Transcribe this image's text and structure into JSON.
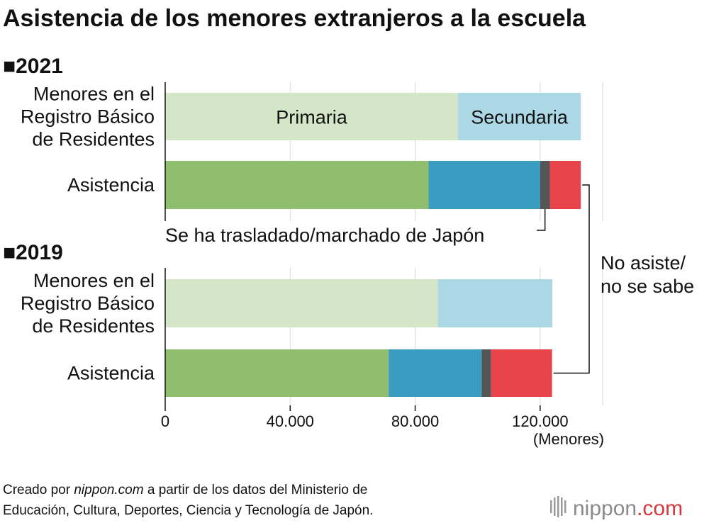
{
  "title": "Asistencia de los menores extranjeros a la escuela",
  "chart_data": {
    "type": "bar",
    "orientation": "horizontal",
    "stacked": true,
    "unit": "(Menores)",
    "xlim": [
      0,
      140000
    ],
    "ticks": [
      0,
      40000,
      80000,
      120000
    ],
    "tick_labels": [
      "0",
      "40.000",
      "80.000",
      "120.000"
    ],
    "panels": [
      {
        "year_label": "■2021",
        "bars": [
          {
            "category": [
              "Menores en el",
              "Registro Básico",
              "de Residentes"
            ],
            "segments": [
              {
                "name": "Primaria",
                "value": 93700,
                "color": "#d3e6c8",
                "label": "Primaria"
              },
              {
                "name": "Secundaria",
                "value": 39300,
                "color": "#acd8e6",
                "label": "Secundaria"
              }
            ]
          },
          {
            "category": [
              "Asistencia"
            ],
            "segments": [
              {
                "name": "Primaria",
                "value": 84300,
                "color": "#8fbf6e"
              },
              {
                "name": "Secundaria",
                "value": 35700,
                "color": "#3a9cc0"
              },
              {
                "name": "Se ha trasladado/marchado de Japón",
                "value": 3100,
                "color": "#555555"
              },
              {
                "name": "No asiste/no se sabe",
                "value": 9900,
                "color": "#e8434a"
              }
            ]
          }
        ]
      },
      {
        "year_label": "■2019",
        "bars": [
          {
            "category": [
              "Menores en el",
              "Registro Básico",
              "de Residentes"
            ],
            "segments": [
              {
                "name": "Primaria",
                "value": 87200,
                "color": "#d3e6c8"
              },
              {
                "name": "Secundaria",
                "value": 36700,
                "color": "#acd8e6"
              }
            ]
          },
          {
            "category": [
              "Asistencia"
            ],
            "segments": [
              {
                "name": "Primaria",
                "value": 71500,
                "color": "#8fbf6e"
              },
              {
                "name": "Secundaria",
                "value": 29800,
                "color": "#3a9cc0"
              },
              {
                "name": "Se ha trasladado/marchado de Japón",
                "value": 3000,
                "color": "#555555"
              },
              {
                "name": "No asiste/no se sabe",
                "value": 19500,
                "color": "#e8434a"
              }
            ]
          }
        ]
      }
    ],
    "annotations": {
      "moved": "Se ha trasladado/marchado de Japón",
      "not_attending": [
        "No asiste/",
        "no se sabe"
      ]
    }
  },
  "source": {
    "line1_prefix": "Creado por ",
    "line1_site": "nippon.com",
    "line1_suffix": " a partir de los datos del Ministerio de",
    "line2": "Educación, Cultura, Deportes, Ciencia y Tecnología de Japón."
  },
  "brand": {
    "name": "nippon",
    "domain": ".com",
    "accent_color": "#d6373d"
  }
}
